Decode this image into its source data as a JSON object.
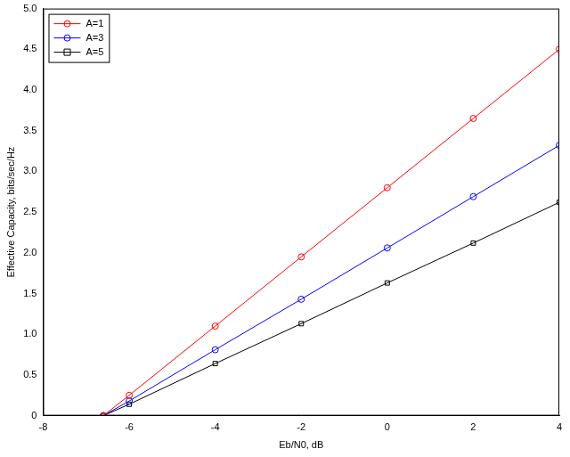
{
  "chart_data": {
    "type": "line",
    "x_label": "Eb/N0, dB",
    "y_label": "Effective Capacity, bits/sec/Hz",
    "x": [
      -6.6,
      -6,
      -4,
      -2,
      0,
      2,
      4
    ],
    "series": [
      {
        "name": "A=1",
        "color": "#ff0000",
        "marker": "circle",
        "values": [
          0,
          0.25,
          1.1,
          1.95,
          2.8,
          3.65,
          4.5
        ]
      },
      {
        "name": "A=3",
        "color": "#0000ff",
        "marker": "circle",
        "values": [
          0,
          0.18,
          0.81,
          1.43,
          2.06,
          2.69,
          3.32
        ]
      },
      {
        "name": "A=5",
        "color": "#000000",
        "marker": "square",
        "values": [
          0,
          0.14,
          0.64,
          1.13,
          1.63,
          2.12,
          2.62
        ]
      }
    ],
    "xlim": [
      -8,
      4
    ],
    "xticks": [
      -8,
      -6,
      -4,
      -2,
      0,
      2,
      4
    ],
    "ylim": [
      0,
      5
    ],
    "yticks": [
      0,
      0.5,
      1,
      1.5,
      2,
      2.5,
      3,
      3.5,
      4,
      4.5,
      5
    ],
    "grid": false,
    "legend": "upper left"
  }
}
